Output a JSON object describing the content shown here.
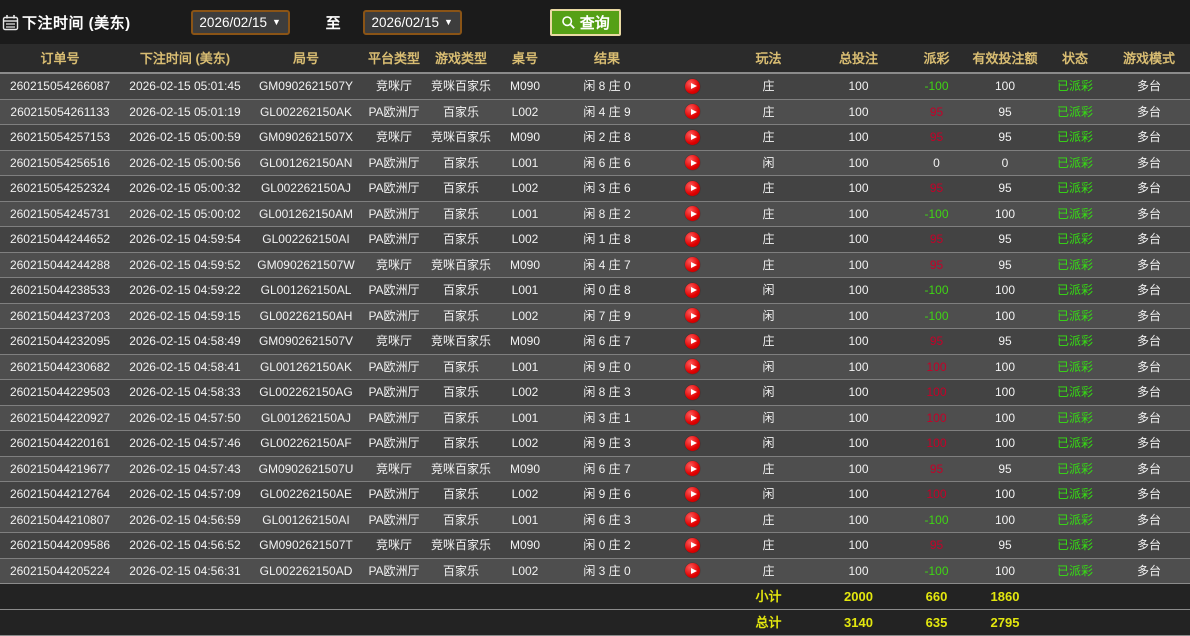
{
  "topbar": {
    "label": "下注时间 (美东)",
    "date_from": "2026/02/15",
    "to_label": "至",
    "date_to": "2026/02/15",
    "query_label": "查询"
  },
  "table": {
    "headers": [
      "订单号",
      "下注时间 (美东)",
      "局号",
      "平台类型",
      "游戏类型",
      "桌号",
      "结果",
      "",
      "玩法",
      "总投注",
      "派彩",
      "有效投注额",
      "状态",
      "游戏模式"
    ],
    "rows": [
      {
        "order_id": "260215054266087",
        "bet_time": "2026-02-15 05:01:45",
        "round_id": "GM0902621507Y",
        "platform": "竞咪厅",
        "game_type": "竞咪百家乐",
        "table_no": "M090",
        "result": "闲 8 庄 0",
        "play": "庄",
        "total_bet": "100",
        "payout": "-100",
        "valid_bet": "100",
        "status": "已派彩",
        "mode": "多台"
      },
      {
        "order_id": "260215054261133",
        "bet_time": "2026-02-15 05:01:19",
        "round_id": "GL002262150AK",
        "platform": "PA欧洲厅",
        "game_type": "百家乐",
        "table_no": "L002",
        "result": "闲 4 庄 9",
        "play": "庄",
        "total_bet": "100",
        "payout": "95",
        "valid_bet": "95",
        "status": "已派彩",
        "mode": "多台"
      },
      {
        "order_id": "260215054257153",
        "bet_time": "2026-02-15 05:00:59",
        "round_id": "GM0902621507X",
        "platform": "竞咪厅",
        "game_type": "竞咪百家乐",
        "table_no": "M090",
        "result": "闲 2 庄 8",
        "play": "庄",
        "total_bet": "100",
        "payout": "95",
        "valid_bet": "95",
        "status": "已派彩",
        "mode": "多台"
      },
      {
        "order_id": "260215054256516",
        "bet_time": "2026-02-15 05:00:56",
        "round_id": "GL001262150AN",
        "platform": "PA欧洲厅",
        "game_type": "百家乐",
        "table_no": "L001",
        "result": "闲 6 庄 6",
        "play": "闲",
        "total_bet": "100",
        "payout": "0",
        "valid_bet": "0",
        "status": "已派彩",
        "mode": "多台"
      },
      {
        "order_id": "260215054252324",
        "bet_time": "2026-02-15 05:00:32",
        "round_id": "GL002262150AJ",
        "platform": "PA欧洲厅",
        "game_type": "百家乐",
        "table_no": "L002",
        "result": "闲 3 庄 6",
        "play": "庄",
        "total_bet": "100",
        "payout": "95",
        "valid_bet": "95",
        "status": "已派彩",
        "mode": "多台"
      },
      {
        "order_id": "260215054245731",
        "bet_time": "2026-02-15 05:00:02",
        "round_id": "GL001262150AM",
        "platform": "PA欧洲厅",
        "game_type": "百家乐",
        "table_no": "L001",
        "result": "闲 8 庄 2",
        "play": "庄",
        "total_bet": "100",
        "payout": "-100",
        "valid_bet": "100",
        "status": "已派彩",
        "mode": "多台"
      },
      {
        "order_id": "260215044244652",
        "bet_time": "2026-02-15 04:59:54",
        "round_id": "GL002262150AI",
        "platform": "PA欧洲厅",
        "game_type": "百家乐",
        "table_no": "L002",
        "result": "闲 1 庄 8",
        "play": "庄",
        "total_bet": "100",
        "payout": "95",
        "valid_bet": "95",
        "status": "已派彩",
        "mode": "多台"
      },
      {
        "order_id": "260215044244288",
        "bet_time": "2026-02-15 04:59:52",
        "round_id": "GM0902621507W",
        "platform": "竞咪厅",
        "game_type": "竞咪百家乐",
        "table_no": "M090",
        "result": "闲 4 庄 7",
        "play": "庄",
        "total_bet": "100",
        "payout": "95",
        "valid_bet": "95",
        "status": "已派彩",
        "mode": "多台"
      },
      {
        "order_id": "260215044238533",
        "bet_time": "2026-02-15 04:59:22",
        "round_id": "GL001262150AL",
        "platform": "PA欧洲厅",
        "game_type": "百家乐",
        "table_no": "L001",
        "result": "闲 0 庄 8",
        "play": "闲",
        "total_bet": "100",
        "payout": "-100",
        "valid_bet": "100",
        "status": "已派彩",
        "mode": "多台"
      },
      {
        "order_id": "260215044237203",
        "bet_time": "2026-02-15 04:59:15",
        "round_id": "GL002262150AH",
        "platform": "PA欧洲厅",
        "game_type": "百家乐",
        "table_no": "L002",
        "result": "闲 7 庄 9",
        "play": "闲",
        "total_bet": "100",
        "payout": "-100",
        "valid_bet": "100",
        "status": "已派彩",
        "mode": "多台"
      },
      {
        "order_id": "260215044232095",
        "bet_time": "2026-02-15 04:58:49",
        "round_id": "GM0902621507V",
        "platform": "竞咪厅",
        "game_type": "竞咪百家乐",
        "table_no": "M090",
        "result": "闲 6 庄 7",
        "play": "庄",
        "total_bet": "100",
        "payout": "95",
        "valid_bet": "95",
        "status": "已派彩",
        "mode": "多台"
      },
      {
        "order_id": "260215044230682",
        "bet_time": "2026-02-15 04:58:41",
        "round_id": "GL001262150AK",
        "platform": "PA欧洲厅",
        "game_type": "百家乐",
        "table_no": "L001",
        "result": "闲 9 庄 0",
        "play": "闲",
        "total_bet": "100",
        "payout": "100",
        "valid_bet": "100",
        "status": "已派彩",
        "mode": "多台"
      },
      {
        "order_id": "260215044229503",
        "bet_time": "2026-02-15 04:58:33",
        "round_id": "GL002262150AG",
        "platform": "PA欧洲厅",
        "game_type": "百家乐",
        "table_no": "L002",
        "result": "闲 8 庄 3",
        "play": "闲",
        "total_bet": "100",
        "payout": "100",
        "valid_bet": "100",
        "status": "已派彩",
        "mode": "多台"
      },
      {
        "order_id": "260215044220927",
        "bet_time": "2026-02-15 04:57:50",
        "round_id": "GL001262150AJ",
        "platform": "PA欧洲厅",
        "game_type": "百家乐",
        "table_no": "L001",
        "result": "闲 3 庄 1",
        "play": "闲",
        "total_bet": "100",
        "payout": "100",
        "valid_bet": "100",
        "status": "已派彩",
        "mode": "多台"
      },
      {
        "order_id": "260215044220161",
        "bet_time": "2026-02-15 04:57:46",
        "round_id": "GL002262150AF",
        "platform": "PA欧洲厅",
        "game_type": "百家乐",
        "table_no": "L002",
        "result": "闲 9 庄 3",
        "play": "闲",
        "total_bet": "100",
        "payout": "100",
        "valid_bet": "100",
        "status": "已派彩",
        "mode": "多台"
      },
      {
        "order_id": "260215044219677",
        "bet_time": "2026-02-15 04:57:43",
        "round_id": "GM0902621507U",
        "platform": "竞咪厅",
        "game_type": "竞咪百家乐",
        "table_no": "M090",
        "result": "闲 6 庄 7",
        "play": "庄",
        "total_bet": "100",
        "payout": "95",
        "valid_bet": "95",
        "status": "已派彩",
        "mode": "多台"
      },
      {
        "order_id": "260215044212764",
        "bet_time": "2026-02-15 04:57:09",
        "round_id": "GL002262150AE",
        "platform": "PA欧洲厅",
        "game_type": "百家乐",
        "table_no": "L002",
        "result": "闲 9 庄 6",
        "play": "闲",
        "total_bet": "100",
        "payout": "100",
        "valid_bet": "100",
        "status": "已派彩",
        "mode": "多台"
      },
      {
        "order_id": "260215044210807",
        "bet_time": "2026-02-15 04:56:59",
        "round_id": "GL001262150AI",
        "platform": "PA欧洲厅",
        "game_type": "百家乐",
        "table_no": "L001",
        "result": "闲 6 庄 3",
        "play": "庄",
        "total_bet": "100",
        "payout": "-100",
        "valid_bet": "100",
        "status": "已派彩",
        "mode": "多台"
      },
      {
        "order_id": "260215044209586",
        "bet_time": "2026-02-15 04:56:52",
        "round_id": "GM0902621507T",
        "platform": "竞咪厅",
        "game_type": "竞咪百家乐",
        "table_no": "M090",
        "result": "闲 0 庄 2",
        "play": "庄",
        "total_bet": "100",
        "payout": "95",
        "valid_bet": "95",
        "status": "已派彩",
        "mode": "多台"
      },
      {
        "order_id": "260215044205224",
        "bet_time": "2026-02-15 04:56:31",
        "round_id": "GL002262150AD",
        "platform": "PA欧洲厅",
        "game_type": "百家乐",
        "table_no": "L002",
        "result": "闲 3 庄 0",
        "play": "庄",
        "total_bet": "100",
        "payout": "-100",
        "valid_bet": "100",
        "status": "已派彩",
        "mode": "多台"
      }
    ],
    "subtotal": {
      "label": "小计",
      "total_bet": "2000",
      "payout": "660",
      "valid_bet": "1860"
    },
    "total": {
      "label": "总计",
      "total_bet": "3140",
      "payout": "635",
      "valid_bet": "2795"
    }
  },
  "colors": {
    "win_red": "#c50028",
    "loss_green": "#3fd414",
    "status_green": "#35e012",
    "summary_yellow": "#e3e70e",
    "header_gold": "#d9bd72",
    "button_green": "#55a016",
    "date_border": "#8a5416"
  }
}
